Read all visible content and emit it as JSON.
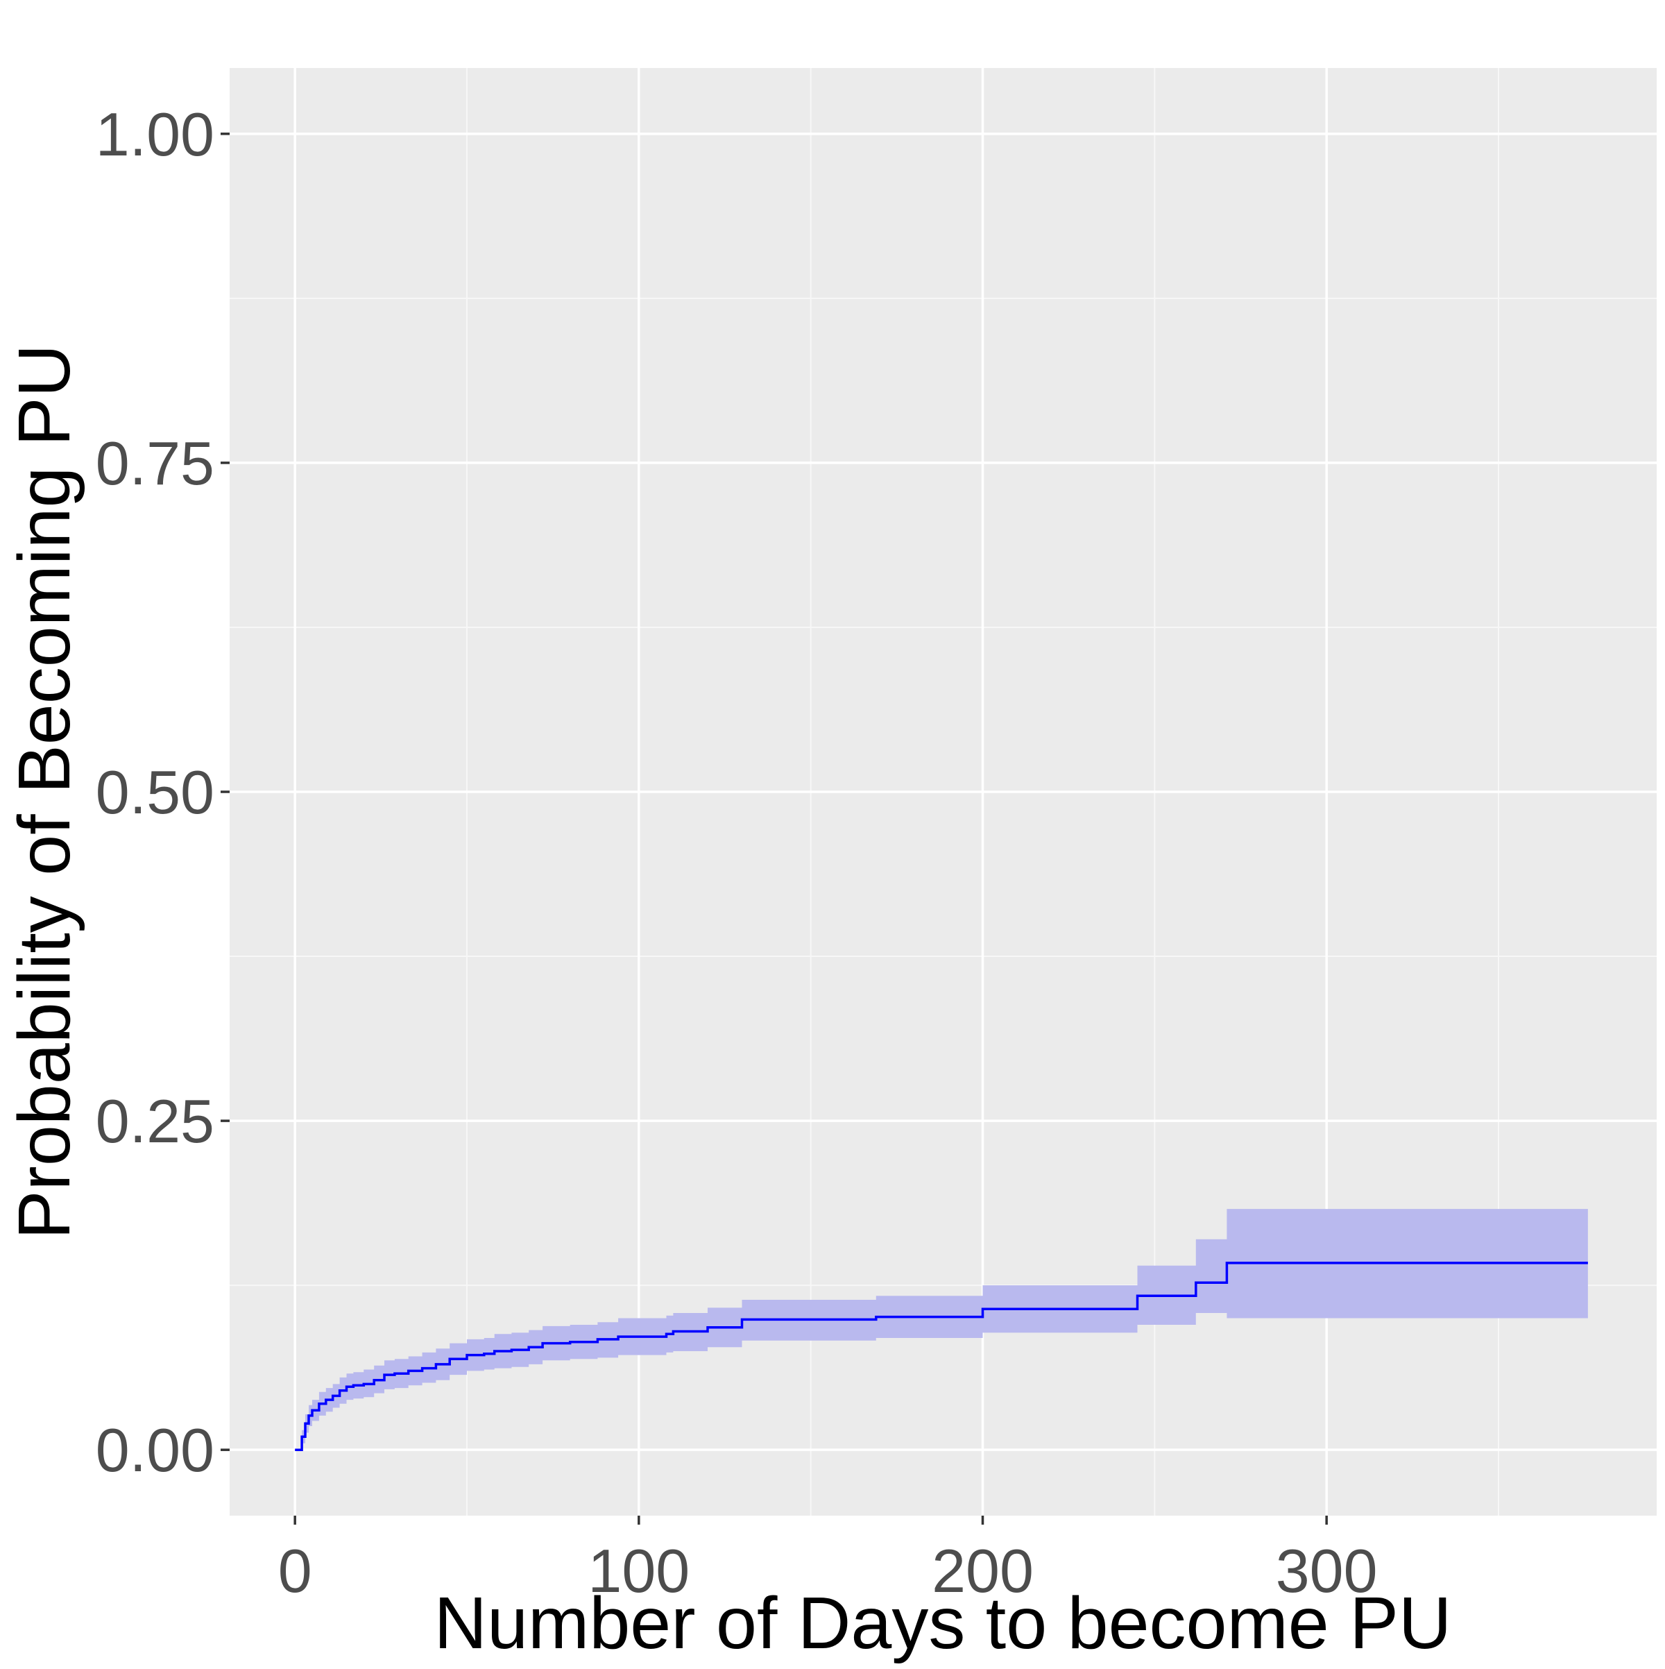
{
  "chart_data": {
    "type": "line",
    "title": "",
    "xlabel": "Number of Days to become PU",
    "ylabel": "Probability of Becoming PU",
    "xlim": [
      -19,
      396
    ],
    "ylim": [
      -0.05,
      1.05
    ],
    "x_ticks": [
      {
        "value": 0,
        "label": "0"
      },
      {
        "value": 100,
        "label": "100"
      },
      {
        "value": 200,
        "label": "200"
      },
      {
        "value": 300,
        "label": "300"
      }
    ],
    "y_ticks": [
      {
        "value": 0.0,
        "label": "0.00"
      },
      {
        "value": 0.25,
        "label": "0.25"
      },
      {
        "value": 0.5,
        "label": "0.50"
      },
      {
        "value": 0.75,
        "label": "0.75"
      },
      {
        "value": 1.0,
        "label": "1.00"
      }
    ],
    "grid": true,
    "step": true,
    "series": [
      {
        "color": "#0000ff",
        "band_color": "#b9b9ee",
        "points": [
          {
            "x": 0,
            "y": 0.0,
            "lo": 0.0,
            "hi": 0.0
          },
          {
            "x": 2,
            "y": 0.01,
            "lo": 0.005,
            "hi": 0.015
          },
          {
            "x": 3,
            "y": 0.02,
            "lo": 0.013,
            "hi": 0.027
          },
          {
            "x": 4,
            "y": 0.026,
            "lo": 0.018,
            "hi": 0.034
          },
          {
            "x": 5,
            "y": 0.03,
            "lo": 0.022,
            "hi": 0.038
          },
          {
            "x": 7,
            "y": 0.035,
            "lo": 0.026,
            "hi": 0.044
          },
          {
            "x": 9,
            "y": 0.038,
            "lo": 0.029,
            "hi": 0.047
          },
          {
            "x": 11,
            "y": 0.041,
            "lo": 0.032,
            "hi": 0.05
          },
          {
            "x": 13,
            "y": 0.045,
            "lo": 0.035,
            "hi": 0.055
          },
          {
            "x": 15,
            "y": 0.048,
            "lo": 0.038,
            "hi": 0.058
          },
          {
            "x": 17,
            "y": 0.049,
            "lo": 0.039,
            "hi": 0.059
          },
          {
            "x": 20,
            "y": 0.05,
            "lo": 0.04,
            "hi": 0.061
          },
          {
            "x": 23,
            "y": 0.053,
            "lo": 0.043,
            "hi": 0.064
          },
          {
            "x": 26,
            "y": 0.057,
            "lo": 0.046,
            "hi": 0.068
          },
          {
            "x": 29,
            "y": 0.058,
            "lo": 0.047,
            "hi": 0.069
          },
          {
            "x": 33,
            "y": 0.06,
            "lo": 0.049,
            "hi": 0.071
          },
          {
            "x": 37,
            "y": 0.062,
            "lo": 0.051,
            "hi": 0.074
          },
          {
            "x": 41,
            "y": 0.065,
            "lo": 0.053,
            "hi": 0.077
          },
          {
            "x": 45,
            "y": 0.069,
            "lo": 0.057,
            "hi": 0.081
          },
          {
            "x": 50,
            "y": 0.072,
            "lo": 0.06,
            "hi": 0.084
          },
          {
            "x": 55,
            "y": 0.073,
            "lo": 0.061,
            "hi": 0.085
          },
          {
            "x": 58,
            "y": 0.075,
            "lo": 0.062,
            "hi": 0.088
          },
          {
            "x": 63,
            "y": 0.076,
            "lo": 0.063,
            "hi": 0.089
          },
          {
            "x": 68,
            "y": 0.078,
            "lo": 0.065,
            "hi": 0.091
          },
          {
            "x": 72,
            "y": 0.081,
            "lo": 0.068,
            "hi": 0.094
          },
          {
            "x": 80,
            "y": 0.082,
            "lo": 0.069,
            "hi": 0.095
          },
          {
            "x": 88,
            "y": 0.084,
            "lo": 0.07,
            "hi": 0.097
          },
          {
            "x": 94,
            "y": 0.086,
            "lo": 0.072,
            "hi": 0.1
          },
          {
            "x": 108,
            "y": 0.088,
            "lo": 0.074,
            "hi": 0.102
          },
          {
            "x": 110,
            "y": 0.09,
            "lo": 0.075,
            "hi": 0.104
          },
          {
            "x": 120,
            "y": 0.093,
            "lo": 0.078,
            "hi": 0.108
          },
          {
            "x": 130,
            "y": 0.099,
            "lo": 0.083,
            "hi": 0.114
          },
          {
            "x": 169,
            "y": 0.101,
            "lo": 0.085,
            "hi": 0.117
          },
          {
            "x": 200,
            "y": 0.107,
            "lo": 0.089,
            "hi": 0.125
          },
          {
            "x": 245,
            "y": 0.117,
            "lo": 0.095,
            "hi": 0.14
          },
          {
            "x": 262,
            "y": 0.127,
            "lo": 0.104,
            "hi": 0.16
          },
          {
            "x": 271,
            "y": 0.142,
            "lo": 0.1,
            "hi": 0.183
          },
          {
            "x": 376,
            "y": 0.142,
            "lo": 0.1,
            "hi": 0.183
          }
        ]
      }
    ]
  }
}
